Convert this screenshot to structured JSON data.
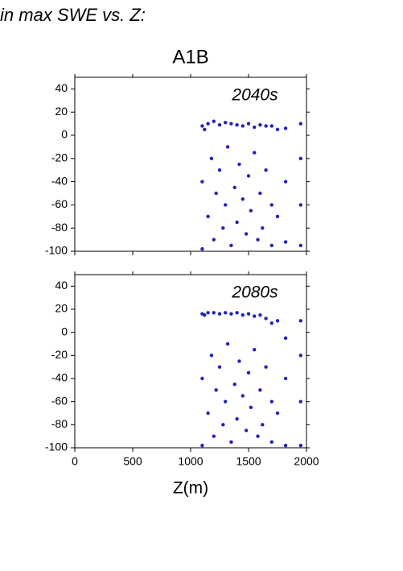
{
  "page_title": "in max SWE vs. Z:",
  "chart_data": [
    {
      "type": "scatter",
      "title": "A1B",
      "annotation": "2040s",
      "color": "#2222bb",
      "xlim": [
        0,
        2000
      ],
      "xticks": [
        0,
        500,
        1000,
        1500,
        2000
      ],
      "ylim": [
        -100,
        50
      ],
      "yticks": [
        -100,
        -80,
        -60,
        -40,
        -20,
        0,
        20,
        40
      ],
      "x": [
        1100,
        1100,
        1100,
        1120,
        1150,
        1150,
        1180,
        1200,
        1200,
        1220,
        1250,
        1250,
        1280,
        1300,
        1300,
        1320,
        1350,
        1350,
        1380,
        1400,
        1400,
        1420,
        1450,
        1450,
        1480,
        1500,
        1500,
        1520,
        1550,
        1550,
        1580,
        1600,
        1600,
        1620,
        1650,
        1650,
        1700,
        1700,
        1700,
        1750,
        1750,
        1820,
        1820,
        1820,
        1950,
        1950,
        1950,
        1950
      ],
      "values": [
        8,
        -40,
        -98,
        5,
        10,
        -70,
        -20,
        12,
        -90,
        -50,
        9,
        -30,
        -80,
        11,
        -60,
        -10,
        10,
        -95,
        -45,
        9,
        -75,
        -25,
        8,
        -55,
        -85,
        10,
        -35,
        -65,
        7,
        -15,
        -90,
        9,
        -50,
        -80,
        8,
        -30,
        8,
        -60,
        -95,
        5,
        -70,
        6,
        -40,
        -92,
        10,
        -20,
        -60,
        -95
      ]
    },
    {
      "type": "scatter",
      "annotation": "2080s",
      "xlabel": "Z(m)",
      "color": "#2222bb",
      "xlim": [
        0,
        2000
      ],
      "xticks": [
        0,
        500,
        1000,
        1500,
        2000
      ],
      "ylim": [
        -100,
        50
      ],
      "yticks": [
        -100,
        -80,
        -60,
        -40,
        -20,
        0,
        20,
        40
      ],
      "x": [
        1100,
        1100,
        1100,
        1120,
        1150,
        1150,
        1180,
        1200,
        1200,
        1220,
        1250,
        1250,
        1280,
        1300,
        1300,
        1320,
        1350,
        1350,
        1380,
        1400,
        1400,
        1420,
        1450,
        1450,
        1480,
        1500,
        1500,
        1520,
        1550,
        1550,
        1580,
        1600,
        1600,
        1620,
        1650,
        1650,
        1700,
        1700,
        1700,
        1750,
        1750,
        1820,
        1820,
        1820,
        1950,
        1950,
        1950,
        1950
      ],
      "values": [
        16,
        -40,
        -98,
        15,
        17,
        -70,
        -20,
        17,
        -90,
        -50,
        16,
        -30,
        -80,
        17,
        -60,
        -10,
        16,
        -95,
        -45,
        17,
        -75,
        -25,
        15,
        -55,
        -85,
        16,
        -35,
        -65,
        14,
        -15,
        -90,
        15,
        -50,
        -80,
        12,
        -30,
        8,
        -60,
        -95,
        10,
        -70,
        -5,
        -40,
        -98,
        10,
        -20,
        -60,
        -98
      ]
    }
  ]
}
